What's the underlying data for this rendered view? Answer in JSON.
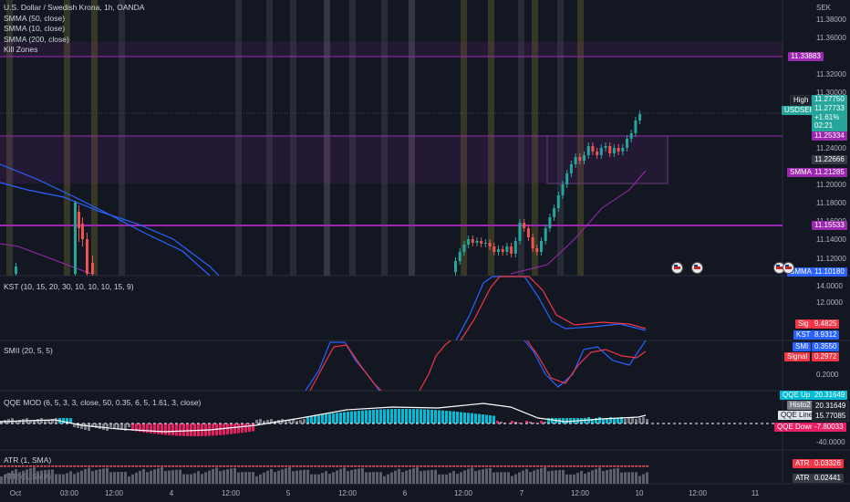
{
  "main": {
    "symbol_title": "U.S. Dollar / Swedish Krona, 1h, OANDA",
    "indicators": [
      "SMMA (50, close)",
      "SMMA (10, close)",
      "SMMA (200, close)",
      "Kill Zones"
    ],
    "currency": "SEK",
    "axis_ticks": [
      "11.38000",
      "11.36000",
      "11.32000",
      "11.30000",
      "11.24000",
      "11.20000",
      "11.18000",
      "11.16000",
      "11.14000",
      "11.12000"
    ],
    "tags": {
      "level_high": "11.33883",
      "high_label": "High",
      "high_value": "11.27750",
      "symbol": "USDSEK",
      "price": "11.27733",
      "change": "+1.61%",
      "countdown": "02:21",
      "level_mid": "11.25334",
      "level_gray": "11.22666",
      "smma_label_1": "SMMA",
      "smma_value_1": "11.21285",
      "level_low": "11.15533",
      "smma_label_2": "SMMA",
      "smma_value_2": "11.10180"
    }
  },
  "kst": {
    "title": "KST (10, 15, 20, 30, 10, 10, 10, 15, 9)",
    "axis_tick": "14.0000",
    "axis_tick2": "12.0000",
    "sig_label": "Sig",
    "sig_value": "9.4825",
    "kst_label": "KST",
    "kst_value": "8.9312"
  },
  "smii": {
    "title": "SMII (20, 5, 5)",
    "axis_tick": "0.2000",
    "smi_label": "SMI",
    "smi_value": "0.3550",
    "signal_label": "Signal",
    "signal_value": "0.2972"
  },
  "qqe": {
    "title": "QQE MOD (6, 5, 3, 3, close, 50, 0.35, 6, 5, 1.61, 3, close)",
    "axis_tick": "-40.0000",
    "up_label": "QQE Up",
    "up_value": "20.31649",
    "histo_label": "Histo2",
    "histo_value": "20.31649",
    "line_label": "QQE Line",
    "line_value": "15.77085",
    "down_label": "QQE Down",
    "down_value": "-7.80033"
  },
  "atr": {
    "title1": "ATR (1, SMA)",
    "title2": "ATR (5, SMA)",
    "label1": "ATR",
    "value1": "0.03326",
    "label2": "ATR",
    "value2": "0.02441"
  },
  "time_axis": [
    "Oct",
    "03:00",
    "12:00",
    "4",
    "12:00",
    "5",
    "12:00",
    "6",
    "12:00",
    "7",
    "12:00",
    "10",
    "12:00",
    "11"
  ],
  "colors": {
    "background": "#131722",
    "up": "#26a69a",
    "down": "#ef5350",
    "purple": "#9c27b0",
    "kst_blue": "#2962ff",
    "kst_red": "#f23645",
    "qqe_up": "#00bcd4",
    "qqe_down": "#e91e63",
    "qqe_gray": "#787b86"
  }
}
